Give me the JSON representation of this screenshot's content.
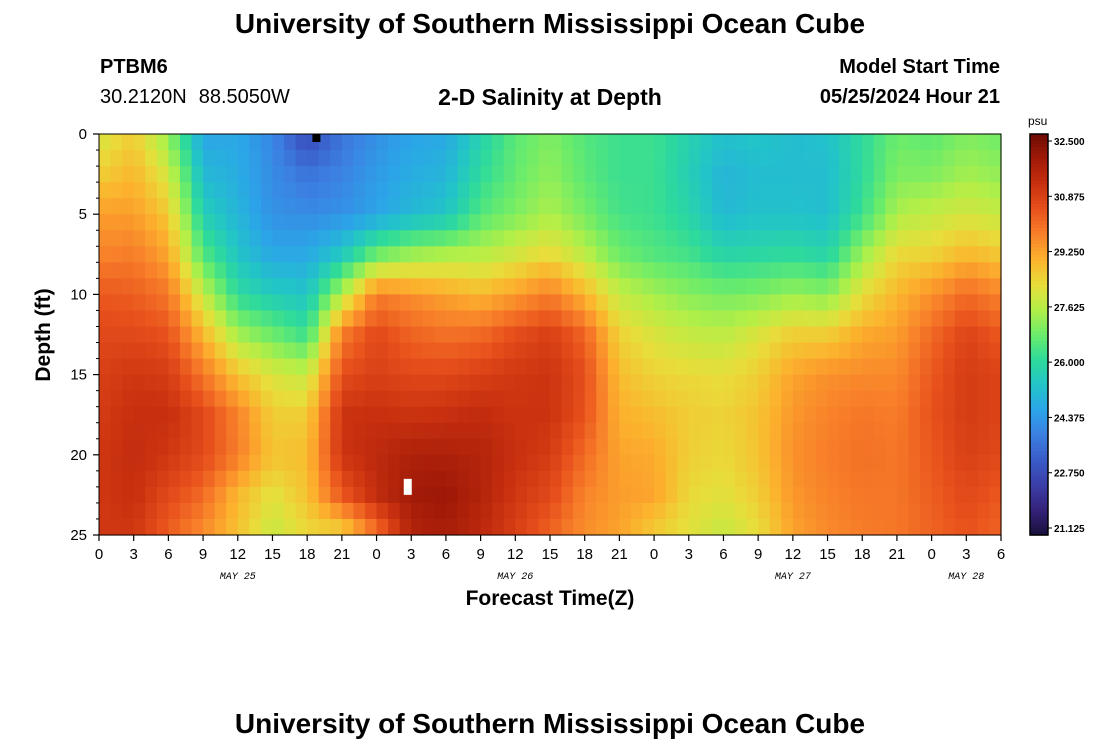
{
  "page": {
    "title": "University of Southern Mississippi Ocean Cube",
    "footer_title": "University of Southern Mississippi Ocean Cube",
    "station_id": "PTBM6",
    "lat": "30.2120N",
    "lon": "88.5050W",
    "subtitle": "2-D Salinity at Depth",
    "model_start_label": "Model Start Time",
    "model_start_value": "05/25/2024 Hour 21"
  },
  "chart_data": {
    "type": "heatmap",
    "title": "2-D Salinity at Depth",
    "xlabel": "Forecast Time(Z)",
    "ylabel": "Depth (ft)",
    "colorbar_unit": "psu",
    "x_tick_labels": [
      "0",
      "3",
      "6",
      "9",
      "12",
      "15",
      "18",
      "21",
      "0",
      "3",
      "6",
      "9",
      "12",
      "15",
      "18",
      "21",
      "0",
      "3",
      "6",
      "9",
      "12",
      "15",
      "18",
      "21",
      "0",
      "3",
      "6"
    ],
    "x_hours_range": [
      0,
      78
    ],
    "date_labels": [
      {
        "label": "MAY 25",
        "hour": 12
      },
      {
        "label": "MAY 26",
        "hour": 36
      },
      {
        "label": "MAY 27",
        "hour": 60
      },
      {
        "label": "MAY 28",
        "hour": 75
      }
    ],
    "y_ticks": [
      0,
      5,
      10,
      15,
      20,
      25
    ],
    "y_range": [
      0,
      25
    ],
    "y_inverted": true,
    "color_range": [
      20.7,
      32.9
    ],
    "colorbar_ticks": [
      "32.500",
      "30.875",
      "29.250",
      "27.625",
      "26.000",
      "24.375",
      "22.750",
      "21.125"
    ],
    "colormap": [
      "#1a0f3c",
      "#35237a",
      "#3b3ea8",
      "#3a5cc8",
      "#3c80e2",
      "#2ba5e8",
      "#22c4c8",
      "#2fdb9a",
      "#6cec6a",
      "#b4ef47",
      "#e8dd3a",
      "#fcb22d",
      "#f8802a",
      "#e8511c",
      "#c8300f",
      "#a11a08",
      "#6e0b03"
    ],
    "depth_levels": [
      0,
      2.5,
      5,
      7.5,
      10,
      12.5,
      15,
      17.5,
      20,
      22.5,
      25
    ],
    "salinity_grid_psu": [
      {
        "hour": 0,
        "values": [
          28.0,
          28.6,
          29.4,
          29.8,
          30.5,
          30.8,
          31.0,
          31.1,
          31.2,
          31.2,
          31.2
        ]
      },
      {
        "hour": 3,
        "values": [
          28.6,
          29.0,
          29.4,
          29.9,
          30.4,
          30.8,
          31.2,
          31.4,
          31.5,
          31.4,
          31.2
        ]
      },
      {
        "hour": 6,
        "values": [
          27.2,
          28.0,
          28.7,
          29.3,
          30.0,
          30.6,
          31.1,
          31.4,
          31.2,
          30.8,
          30.4
        ]
      },
      {
        "hour": 9,
        "values": [
          24.5,
          25.0,
          25.6,
          26.5,
          27.8,
          29.0,
          30.0,
          30.8,
          30.8,
          30.2,
          29.6
        ]
      },
      {
        "hour": 12,
        "values": [
          24.6,
          24.7,
          24.9,
          25.3,
          26.0,
          27.4,
          28.8,
          29.8,
          29.9,
          29.0,
          28.8
        ]
      },
      {
        "hour": 15,
        "values": [
          23.9,
          24.0,
          24.1,
          24.6,
          25.5,
          26.8,
          28.1,
          28.6,
          28.8,
          28.2,
          27.8
        ]
      },
      {
        "hour": 18,
        "values": [
          22.5,
          23.5,
          24.0,
          24.6,
          25.3,
          26.2,
          27.8,
          28.6,
          28.9,
          28.8,
          28.4
        ]
      },
      {
        "hour": 21,
        "values": [
          23.5,
          23.8,
          24.1,
          25.4,
          27.6,
          29.9,
          30.7,
          31.3,
          31.3,
          30.5,
          28.4
        ]
      },
      {
        "hour": 24,
        "values": [
          24.1,
          24.3,
          24.5,
          26.8,
          29.9,
          30.8,
          31.0,
          31.4,
          31.6,
          31.5,
          30.0
        ]
      },
      {
        "hour": 27,
        "values": [
          24.5,
          24.7,
          25.0,
          27.3,
          29.6,
          30.3,
          30.8,
          31.3,
          31.9,
          32.1,
          31.8
        ]
      },
      {
        "hour": 30,
        "values": [
          24.6,
          24.9,
          25.3,
          27.5,
          29.3,
          30.1,
          30.8,
          31.4,
          31.9,
          32.2,
          32.0
        ]
      },
      {
        "hour": 33,
        "values": [
          25.7,
          26.0,
          26.5,
          27.6,
          29.0,
          30.2,
          31.0,
          31.5,
          31.8,
          31.8,
          31.6
        ]
      },
      {
        "hour": 36,
        "values": [
          26.6,
          26.7,
          27.0,
          28.0,
          29.4,
          30.7,
          31.2,
          31.3,
          31.4,
          31.2,
          31.0
        ]
      },
      {
        "hour": 39,
        "values": [
          27.0,
          27.2,
          27.5,
          28.4,
          29.9,
          31.0,
          31.3,
          31.3,
          31.1,
          30.8,
          30.3
        ]
      },
      {
        "hour": 42,
        "values": [
          26.5,
          26.6,
          26.9,
          27.7,
          29.0,
          30.3,
          30.7,
          30.6,
          30.2,
          29.8,
          29.6
        ]
      },
      {
        "hour": 45,
        "values": [
          26.2,
          26.2,
          26.3,
          26.8,
          27.8,
          28.5,
          28.9,
          29.1,
          29.3,
          29.4,
          29.3
        ]
      },
      {
        "hour": 48,
        "values": [
          26.2,
          26.2,
          26.2,
          26.5,
          27.4,
          28.1,
          28.5,
          28.9,
          29.2,
          29.3,
          28.6
        ]
      },
      {
        "hour": 51,
        "values": [
          25.7,
          25.6,
          25.8,
          26.3,
          27.1,
          27.8,
          28.4,
          28.6,
          28.6,
          28.4,
          28.2
        ]
      },
      {
        "hour": 54,
        "values": [
          25.2,
          24.9,
          25.0,
          25.8,
          26.9,
          27.7,
          28.3,
          28.5,
          28.4,
          28.2,
          27.8
        ]
      },
      {
        "hour": 57,
        "values": [
          25.3,
          25.1,
          25.2,
          25.9,
          27.0,
          28.1,
          28.6,
          28.8,
          28.8,
          28.6,
          28.3
        ]
      },
      {
        "hour": 60,
        "values": [
          25.1,
          25.1,
          25.2,
          26.0,
          27.3,
          28.6,
          29.3,
          29.5,
          29.6,
          29.5,
          29.3
        ]
      },
      {
        "hour": 63,
        "values": [
          25.2,
          25.1,
          25.1,
          25.8,
          27.1,
          28.6,
          29.6,
          29.8,
          29.9,
          29.8,
          29.7
        ]
      },
      {
        "hour": 66,
        "values": [
          26.0,
          26.0,
          26.2,
          27.3,
          28.3,
          29.2,
          29.7,
          30.0,
          30.1,
          30.0,
          29.9
        ]
      },
      {
        "hour": 69,
        "values": [
          26.8,
          27.0,
          27.5,
          28.4,
          29.0,
          29.4,
          29.7,
          29.9,
          30.0,
          30.0,
          30.0
        ]
      },
      {
        "hour": 72,
        "values": [
          26.6,
          27.0,
          27.8,
          28.5,
          29.6,
          30.2,
          30.5,
          30.6,
          30.5,
          30.4,
          30.3
        ]
      },
      {
        "hour": 75,
        "values": [
          27.0,
          27.4,
          28.0,
          29.0,
          30.2,
          30.9,
          31.1,
          31.1,
          31.0,
          30.8,
          30.6
        ]
      },
      {
        "hour": 78,
        "values": [
          26.8,
          27.2,
          27.8,
          28.7,
          29.8,
          30.5,
          30.9,
          30.9,
          30.8,
          30.5,
          30.3
        ]
      }
    ]
  }
}
